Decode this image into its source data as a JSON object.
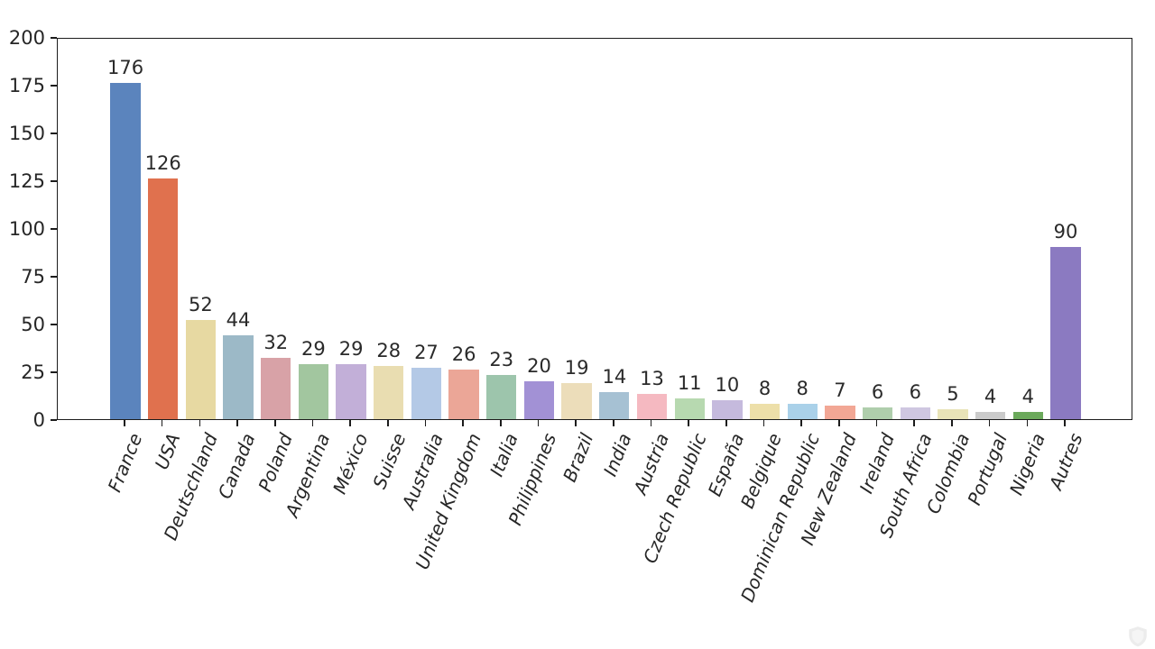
{
  "figure": {
    "background": "#ffffff",
    "axis_color": "#1c1c1c",
    "tick_label_color": "#262626",
    "value_label_color": "#2a2a2a"
  },
  "chart_data": {
    "type": "bar",
    "title": "",
    "xlabel": "",
    "ylabel": "",
    "ylim": [
      0,
      200
    ],
    "yticks": [
      0,
      25,
      50,
      75,
      100,
      125,
      150,
      175,
      200
    ],
    "grid": false,
    "legend": "none",
    "value_labels_shown": true,
    "x_tick_rotation_deg": 68,
    "categories": [
      "France",
      "USA",
      "Deutschland",
      "Canada",
      "Poland",
      "Argentina",
      "México",
      "Suisse",
      "Australia",
      "United Kingdom",
      "Italia",
      "Philippines",
      "Brazil",
      "India",
      "Austria",
      "Czech Republic",
      "España",
      "Belgique",
      "Dominican Republic",
      "New Zealand",
      "Ireland",
      "South Africa",
      "Colombia",
      "Portugal",
      "Nigeria",
      "Autres"
    ],
    "values": [
      176,
      126,
      52,
      44,
      32,
      29,
      29,
      28,
      27,
      26,
      23,
      20,
      19,
      14,
      13,
      11,
      10,
      8,
      8,
      7,
      6,
      6,
      5,
      4,
      4,
      90
    ],
    "bar_colors": [
      "#5b84bd",
      "#e0714e",
      "#e7d9a2",
      "#9cb9c7",
      "#d8a2a7",
      "#a2c69f",
      "#c2afd8",
      "#e9ddb1",
      "#b4c9e6",
      "#eba697",
      "#9dc5ac",
      "#a291d5",
      "#ecddba",
      "#a6c1d3",
      "#f5b9c1",
      "#b7d9b0",
      "#c5badd",
      "#eddfa9",
      "#aad1e9",
      "#f2a795",
      "#afceac",
      "#cfc7e1",
      "#e9e4b8",
      "#cbcbcb",
      "#6ba95b",
      "#8b7ac1"
    ]
  },
  "watermark": {
    "icon": "shield",
    "color": "#eaeaea"
  }
}
